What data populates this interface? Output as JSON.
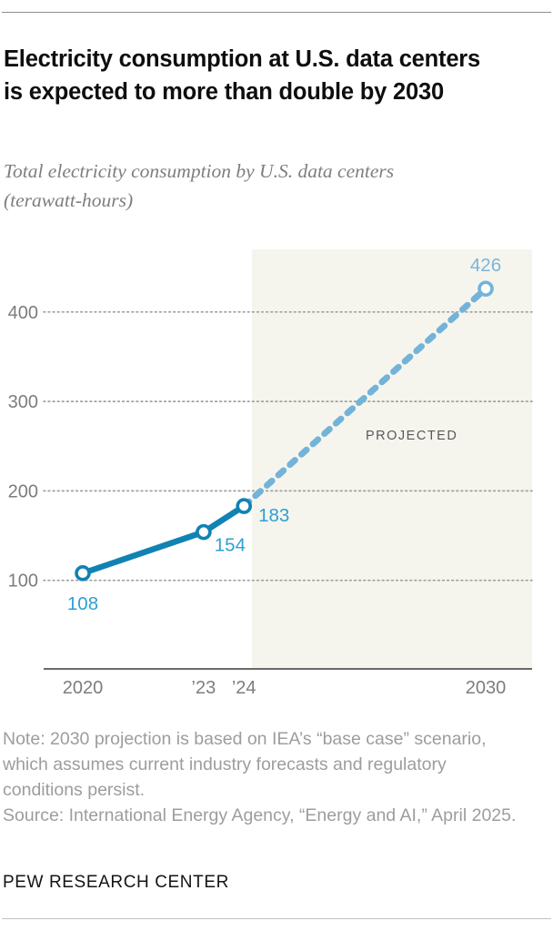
{
  "header": {
    "title": "Electricity consumption at U.S. data centers is expected to more than double by 2030",
    "subtitle": "Total electricity consumption by U.S. data centers (terawatt-hours)"
  },
  "chart_data": {
    "type": "line",
    "title": "Total electricity consumption by U.S. data centers (terawatt-hours)",
    "xlabel": "",
    "ylabel": "terawatt-hours",
    "xlim": [
      2019,
      2031.2
    ],
    "ylim": [
      0,
      470
    ],
    "grid": "dotted-horizontal",
    "y_ticks": [
      100,
      200,
      300,
      400
    ],
    "x_ticks": [
      {
        "x": 2020,
        "label": "2020"
      },
      {
        "x": 2023,
        "label": "’23"
      },
      {
        "x": 2024,
        "label": "’24"
      },
      {
        "x": 2030,
        "label": "2030"
      }
    ],
    "series": [
      {
        "name": "actual",
        "style": "solid",
        "x": [
          2020,
          2023,
          2024
        ],
        "values": [
          108,
          154,
          183
        ]
      },
      {
        "name": "projected",
        "style": "dashed",
        "x": [
          2024,
          2030
        ],
        "values": [
          183,
          426
        ]
      }
    ],
    "point_labels": [
      {
        "x": 2020,
        "value": 108,
        "label": "108",
        "series": "actual"
      },
      {
        "x": 2023,
        "value": 154,
        "label": "154",
        "series": "actual"
      },
      {
        "x": 2024,
        "value": 183,
        "label": "183",
        "series": "actual"
      },
      {
        "x": 2030,
        "value": 426,
        "label": "426",
        "series": "projected"
      }
    ],
    "annotations": {
      "projected_region_label": "PROJECTED"
    },
    "projection_starts_after_x": 2024,
    "colors": {
      "actual_line": "#1182b4",
      "projected_line": "#74b3d9",
      "actual_label": "#2f9fd3",
      "projected_label": "#79b6da",
      "shade": "#f5f5ee",
      "grid": "#a0a0a0",
      "axis": "#3a3a3a",
      "tick_label": "#7d7d7d",
      "annotation": "#58595b"
    }
  },
  "footer": {
    "note": "Note: 2030 projection is based on IEA’s “base case” scenario, which assumes current industry forecasts and regulatory conditions persist.",
    "source": "Source: International Energy Agency, “Energy and AI,” April 2025.",
    "brand": "PEW RESEARCH CENTER"
  }
}
